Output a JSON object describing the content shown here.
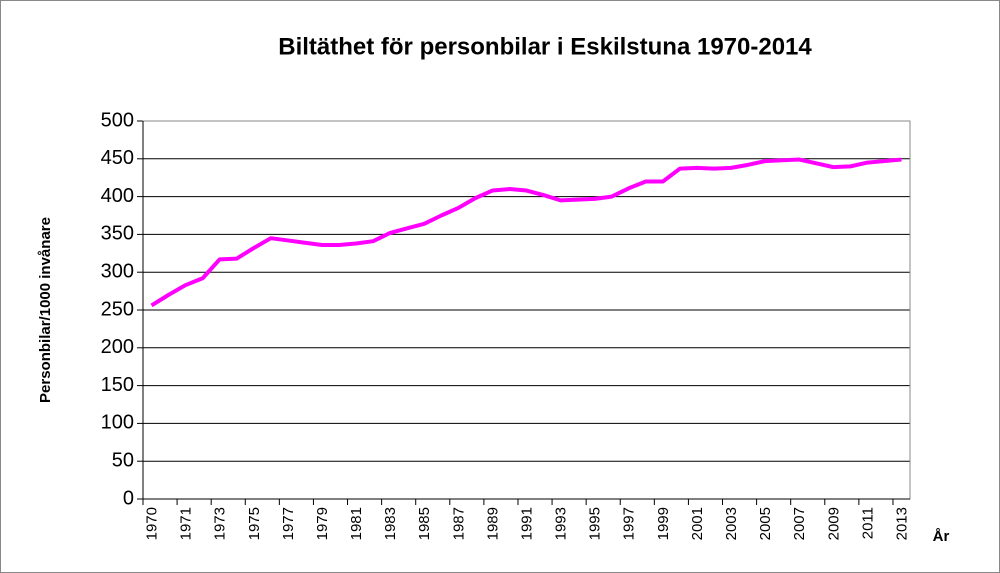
{
  "chart_data": {
    "type": "line",
    "title": "Biltäthet för personbilar i Eskilstuna 1970-2014",
    "y_label": "Personbilar/1000 invånare",
    "x_label": "År",
    "categories": [
      "1970",
      null,
      "1971",
      null,
      "1973",
      null,
      "1975",
      null,
      "1977",
      null,
      "1979",
      null,
      "1981",
      null,
      "1983",
      null,
      "1985",
      null,
      "1987",
      null,
      "1989",
      null,
      "1991",
      null,
      "1993",
      null,
      "1995",
      null,
      "1997",
      null,
      "1999",
      null,
      "2001",
      null,
      "2003",
      null,
      "2005",
      null,
      "2007",
      null,
      "2009",
      null,
      "2011",
      null,
      "2013"
    ],
    "values": [
      256,
      270,
      283,
      292,
      317,
      318,
      332,
      345,
      342,
      339,
      336,
      336,
      338,
      341,
      352,
      358,
      364,
      375,
      385,
      398,
      408,
      410,
      408,
      402,
      395,
      396,
      397,
      400,
      411,
      420,
      420,
      437,
      438,
      437,
      438,
      442,
      447,
      448,
      449,
      444,
      439,
      440,
      445,
      447,
      449
    ],
    "color": "#ff00ff",
    "ylim": [
      0,
      500
    ],
    "yticks": [
      0,
      50,
      100,
      150,
      200,
      250,
      300,
      350,
      400,
      450,
      500
    ],
    "grid": true
  }
}
